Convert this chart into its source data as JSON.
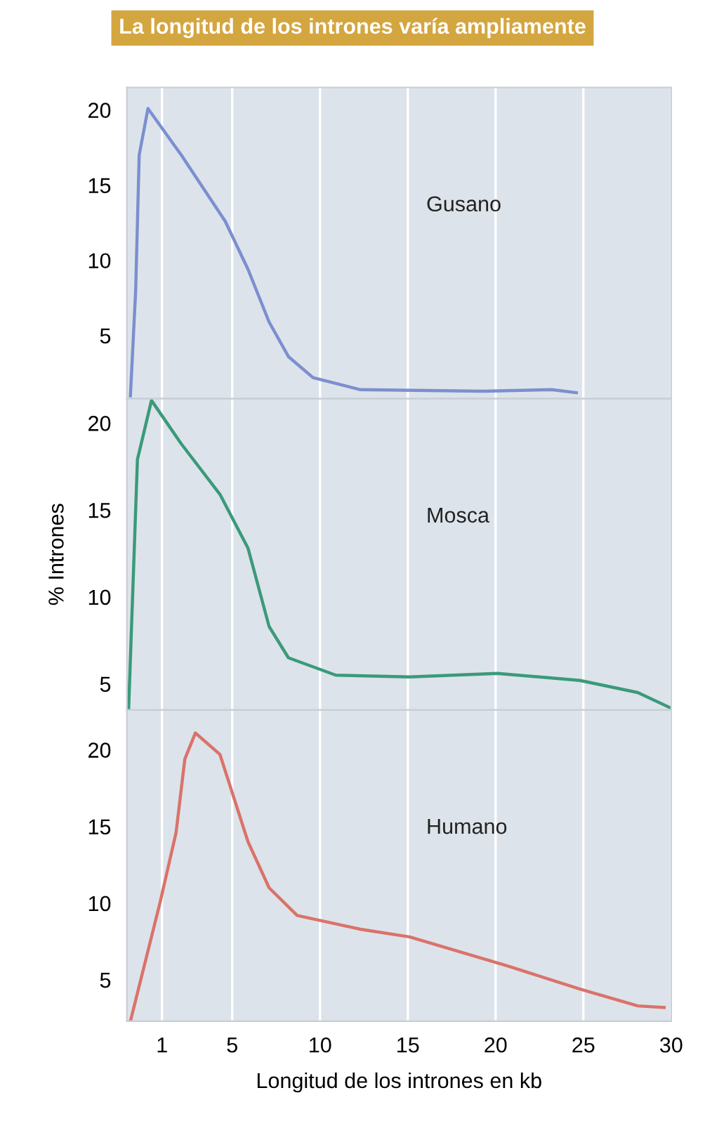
{
  "chart_data": [
    {
      "type": "line",
      "title": "La longitud de los intrones varía ampliamente",
      "xlim": [
        -1,
        30
      ],
      "xticks": [
        1,
        5,
        10,
        15,
        20,
        25,
        30
      ],
      "ylim": [
        0.8,
        21.5
      ],
      "yticks": [
        5,
        10,
        15,
        20
      ],
      "grid": "x",
      "tick_labels": "y",
      "series": [
        {
          "name": "Gusano",
          "color": "#7b8fd0",
          "x": [
            -0.8,
            -0.5,
            -0.3,
            0.2,
            2.1,
            4.6,
            5.9,
            7.1,
            8.2,
            9.6,
            12.3,
            19.3,
            23.2,
            24.6
          ],
          "values": [
            1.0,
            8,
            17,
            20.1,
            17.0,
            12.6,
            9.4,
            5.9,
            3.6,
            2.2,
            1.4,
            1.3,
            1.4,
            1.2
          ]
        }
      ]
    },
    {
      "type": "line",
      "ylabel": "% Intrones",
      "xlim": [
        -1,
        30
      ],
      "xticks": [
        1,
        5,
        10,
        15,
        20,
        25,
        30
      ],
      "ylim": [
        3.5,
        21.4
      ],
      "yticks": [
        5,
        10,
        15,
        20
      ],
      "grid": "x",
      "tick_labels": "y",
      "series": [
        {
          "name": "Mosca",
          "color": "#3a9a7a",
          "x": [
            -0.9,
            -0.4,
            0.4,
            2.1,
            4.3,
            5.9,
            7.1,
            8.2,
            10.9,
            15.1,
            20.1,
            24.8,
            28.1,
            30
          ],
          "values": [
            3.6,
            17.9,
            21.3,
            18.8,
            15.9,
            12.8,
            8.3,
            6.5,
            5.5,
            5.4,
            5.6,
            5.2,
            4.5,
            3.6
          ]
        }
      ]
    },
    {
      "type": "line",
      "xlabel": "Longitud de los intrones en kb",
      "xlim": [
        -1,
        30
      ],
      "xticks": [
        1,
        5,
        10,
        15,
        20,
        25,
        30
      ],
      "ylim": [
        2.3,
        22.6
      ],
      "yticks": [
        5,
        10,
        15,
        20
      ],
      "grid": "x",
      "series": [
        {
          "name": "Humano",
          "color": "#d9736a",
          "x": [
            -0.8,
            0.9,
            1.8,
            2.3,
            2.9,
            4.3,
            5.9,
            7.1,
            8.7,
            12.3,
            15.1,
            20.7,
            24.8,
            28.1,
            29.6
          ],
          "values": [
            2.3,
            10.1,
            14.6,
            19.4,
            21.1,
            19.7,
            14.0,
            11.0,
            9.2,
            8.3,
            7.8,
            5.9,
            4.4,
            3.3,
            3.2
          ]
        }
      ]
    }
  ]
}
